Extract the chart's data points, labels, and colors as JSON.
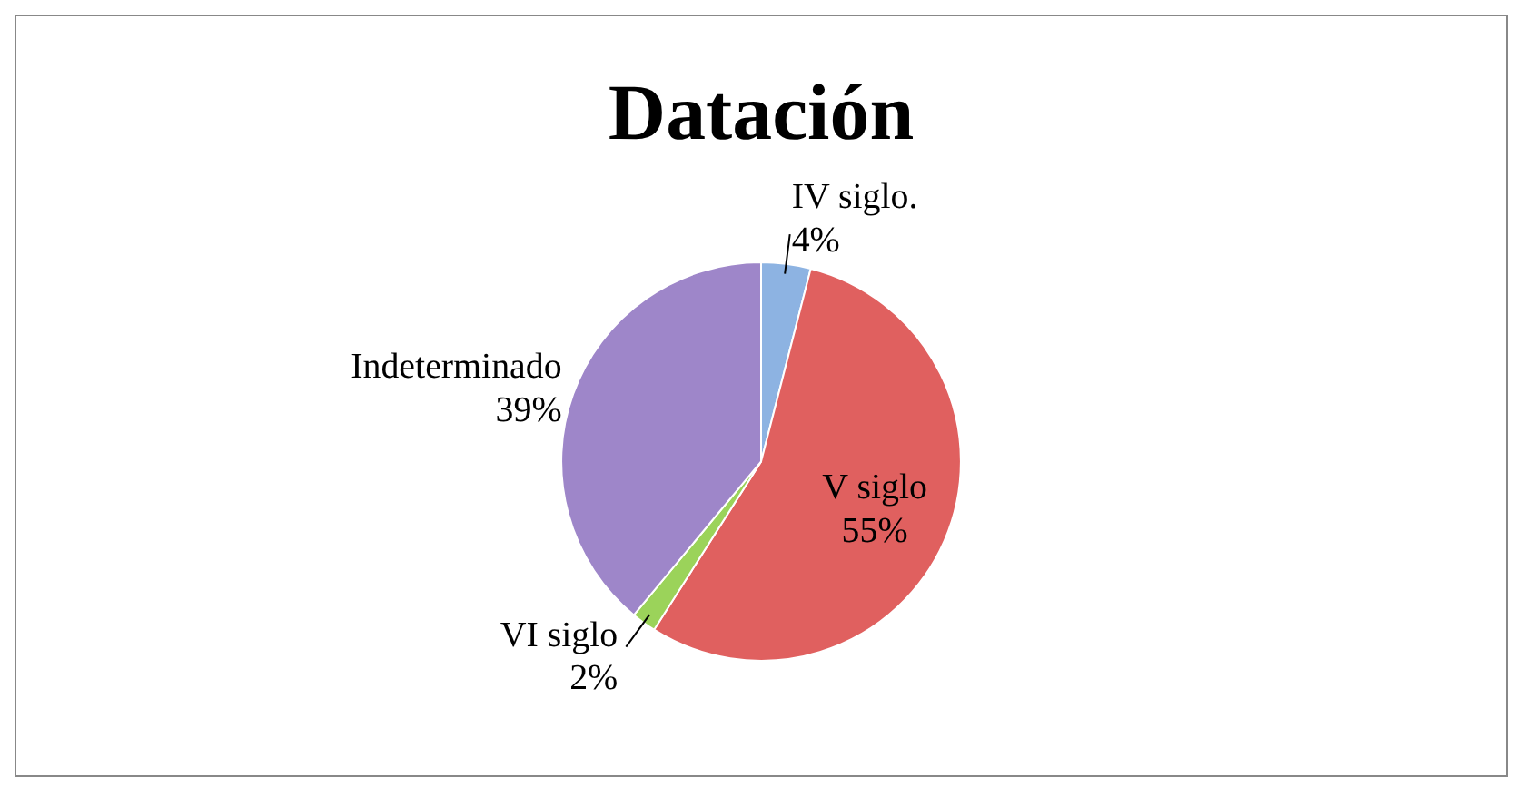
{
  "chart_data": {
    "type": "pie",
    "title": "Datación",
    "categories": [
      "IV siglo.",
      "V siglo",
      "VI siglo",
      "Indeterminado"
    ],
    "values": [
      4,
      55,
      2,
      39
    ],
    "colors": [
      "#8db3e2",
      "#e0605f",
      "#9bd35a",
      "#9e86c9"
    ],
    "value_labels": [
      "4%",
      "55%",
      "2%",
      "39%"
    ],
    "legend": false
  }
}
